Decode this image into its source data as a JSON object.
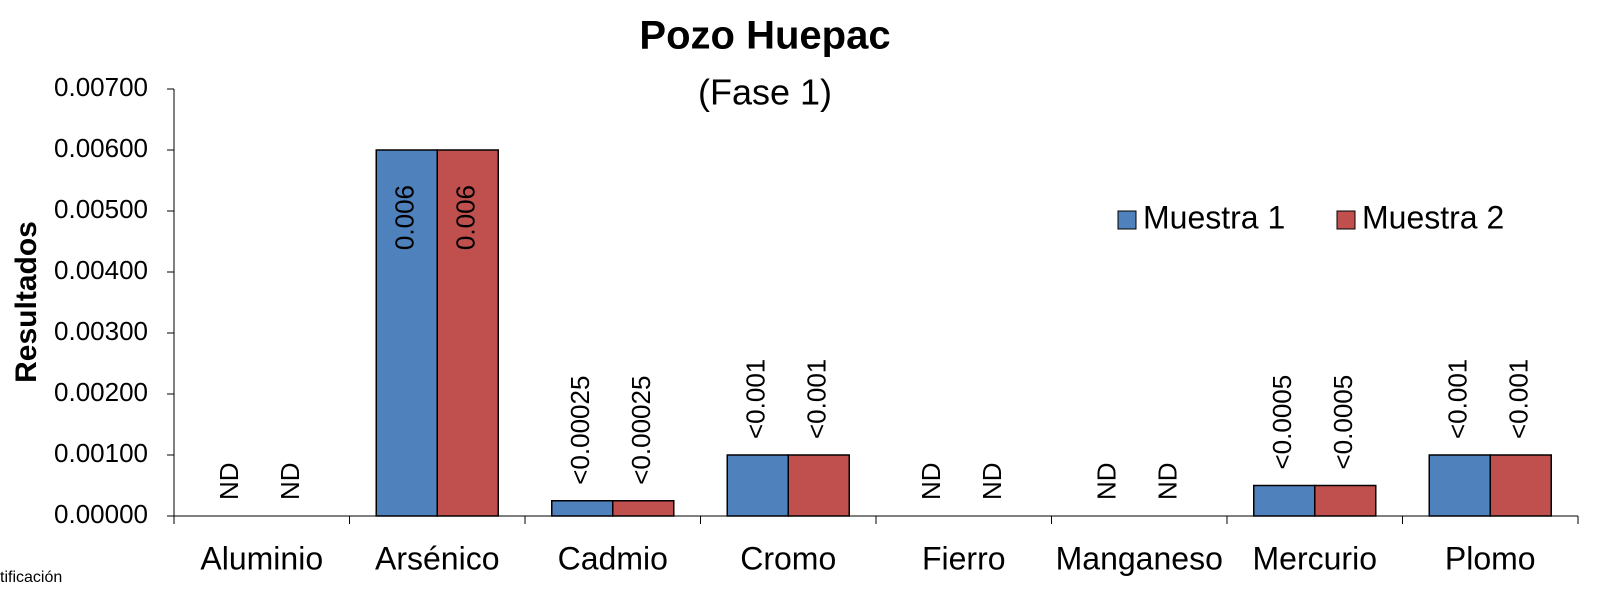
{
  "chart_data": {
    "type": "bar",
    "title": "Pozo Huepac",
    "subtitle": "(Fase 1)",
    "y_label": "Resultados",
    "footnote": "tificación",
    "categories": [
      "Aluminio",
      "Arsénico",
      "Cadmio",
      "Cromo",
      "Fierro",
      "Manganeso",
      "Mercurio",
      "Plomo"
    ],
    "series": [
      {
        "name": "Muestra 1",
        "color": "#4f81bd",
        "values": [
          null,
          0.006,
          0.00025,
          0.001,
          null,
          null,
          0.0005,
          0.001
        ],
        "value_labels": [
          "ND",
          "0.006",
          "<0.00025",
          "<0.001",
          "ND",
          "ND",
          "<0.0005",
          "<0.001"
        ]
      },
      {
        "name": "Muestra 2",
        "color": "#c0504d",
        "values": [
          null,
          0.006,
          0.00025,
          0.001,
          null,
          null,
          0.0005,
          0.001
        ],
        "value_labels": [
          "ND",
          "0.006",
          "<0.00025",
          "<0.001",
          "ND",
          "ND",
          "<0.0005",
          "<0.001"
        ]
      }
    ],
    "ylim": [
      0,
      0.007
    ],
    "yticks": [
      {
        "value": 0,
        "label": "0.00000"
      },
      {
        "value": 0.001,
        "label": "0.00100"
      },
      {
        "value": 0.002,
        "label": "0.00200"
      },
      {
        "value": 0.003,
        "label": "0.00300"
      },
      {
        "value": 0.004,
        "label": "0.00400"
      },
      {
        "value": 0.005,
        "label": "0.00500"
      },
      {
        "value": 0.006,
        "label": "0.00600"
      },
      {
        "value": 0.007,
        "label": "0.00700"
      }
    ],
    "grid": false,
    "legend": "upper right"
  }
}
